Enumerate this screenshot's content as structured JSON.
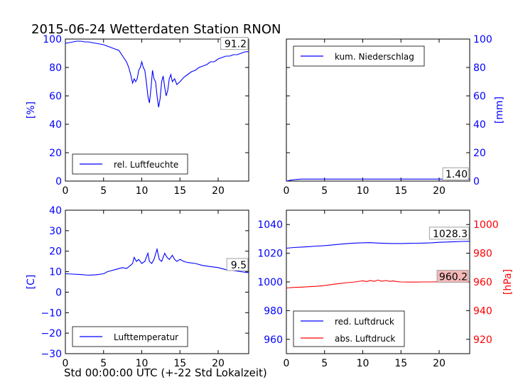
{
  "title": "2015-06-24 Wetterdaten Station RNON",
  "xcaption": "Std 00:00:00 UTC (+-22 Std Lokalzeit)",
  "colors": {
    "blue": "#0000ff",
    "red": "#ff0000",
    "grey": "#a0a0a0"
  },
  "chart_data": [
    {
      "type": "line",
      "panel": "top-left",
      "xlim": [
        0,
        24
      ],
      "xticks": [
        "0",
        "5",
        "10",
        "15",
        "20"
      ],
      "ylim": [
        0,
        100
      ],
      "yticks": [
        "0",
        "20",
        "40",
        "60",
        "80",
        "100"
      ],
      "ylabel": "[%]",
      "ylabel_color": "#0000ff",
      "axis_side": "left",
      "legend": "bottom-left",
      "annotation": "91.2",
      "series": [
        {
          "name": "rel. Luftfeuchte",
          "color": "#0000ff",
          "x": [
            0,
            0.5,
            1,
            1.5,
            2,
            2.5,
            3,
            3.5,
            4,
            4.5,
            5,
            5.5,
            6,
            6.5,
            7,
            7.5,
            8,
            8.3,
            8.6,
            8.8,
            9,
            9.2,
            9.4,
            9.6,
            9.8,
            10,
            10.2,
            10.4,
            10.6,
            10.8,
            11,
            11.2,
            11.4,
            11.6,
            11.8,
            12,
            12.2,
            12.4,
            12.6,
            12.8,
            13,
            13.2,
            13.4,
            13.6,
            13.8,
            14,
            14.3,
            14.6,
            15,
            15.5,
            16,
            16.5,
            17,
            17.5,
            18,
            18.5,
            19,
            19.5,
            20,
            20.5,
            21,
            21.5,
            22,
            22.5,
            23,
            23.5,
            24
          ],
          "y": [
            97,
            97.5,
            98,
            98.5,
            98.5,
            98,
            98,
            97.5,
            97,
            96.5,
            96,
            95,
            94,
            93,
            92,
            88,
            84,
            80,
            74,
            69,
            72,
            70,
            72,
            78,
            80,
            84,
            80,
            78,
            70,
            60,
            55,
            65,
            78,
            72,
            70,
            60,
            52,
            58,
            70,
            74,
            66,
            60,
            64,
            72,
            75,
            70,
            72,
            68,
            70,
            73,
            75,
            77,
            78,
            80,
            81,
            82,
            84,
            84,
            86,
            87,
            88,
            88,
            89,
            89,
            90,
            91,
            91.2
          ]
        }
      ]
    },
    {
      "type": "line",
      "panel": "top-right",
      "xlim": [
        0,
        24
      ],
      "xticks": [
        "0",
        "5",
        "10",
        "15",
        "20"
      ],
      "ylim": [
        0,
        100
      ],
      "yticks": [
        "0",
        "20",
        "40",
        "60",
        "80",
        "100"
      ],
      "ylabel": "[mm]",
      "ylabel_color": "#0000ff",
      "axis_side": "right",
      "legend": "top-left",
      "annotation": "1.40",
      "series": [
        {
          "name": "kum. Niederschlag",
          "color": "#0000ff",
          "x": [
            0,
            0.5,
            1,
            1.5,
            2,
            3,
            5,
            10,
            15,
            20,
            24
          ],
          "y": [
            0,
            0.6,
            1.0,
            1.2,
            1.4,
            1.4,
            1.4,
            1.4,
            1.4,
            1.4,
            1.4
          ]
        }
      ]
    },
    {
      "type": "line",
      "panel": "bottom-left",
      "xlim": [
        0,
        24
      ],
      "xticks": [
        "0",
        "5",
        "10",
        "15",
        "20"
      ],
      "ylim": [
        -30,
        40
      ],
      "yticks": [
        "−30",
        "−20",
        "−10",
        "0",
        "10",
        "20",
        "30",
        "40"
      ],
      "ylabel": "[C]",
      "ylabel_color": "#0000ff",
      "axis_side": "left",
      "legend": "bottom-left",
      "annotation": "9.5",
      "series": [
        {
          "name": "Lufttemperatur",
          "color": "#0000ff",
          "x": [
            0,
            1,
            2,
            3,
            4,
            5,
            5.5,
            6,
            6.5,
            7,
            7.5,
            8,
            8.5,
            8.8,
            9,
            9.3,
            9.6,
            10,
            10.4,
            10.8,
            11,
            11.3,
            11.6,
            12,
            12.3,
            12.6,
            13,
            13.3,
            13.6,
            14,
            14.3,
            14.6,
            15,
            15.5,
            16,
            17,
            18,
            19,
            20,
            21,
            22,
            23,
            24
          ],
          "y": [
            9,
            8.8,
            8.6,
            8.3,
            8.5,
            9,
            10,
            10.5,
            11,
            11.5,
            12,
            11.5,
            13,
            14,
            17,
            15,
            16,
            14,
            15,
            19,
            15,
            14,
            16,
            21,
            16,
            15,
            19,
            17,
            16,
            18,
            16,
            15,
            16,
            15,
            14.5,
            14,
            13,
            12.5,
            12,
            11,
            10.5,
            10,
            9.5
          ]
        }
      ]
    },
    {
      "type": "line",
      "panel": "bottom-right",
      "xlim": [
        0,
        24
      ],
      "xticks": [
        "0",
        "5",
        "10",
        "15",
        "20"
      ],
      "ylim": [
        950,
        1050
      ],
      "yticks": [
        "960",
        "980",
        "1000",
        "1020",
        "1040"
      ],
      "ylabel_color": "#0000ff",
      "axis_side": "left",
      "y2lim": [
        910,
        1010
      ],
      "y2ticks": [
        "920",
        "940",
        "960",
        "980",
        "1000"
      ],
      "y2label": "[hPa]",
      "y2label_color": "#ff0000",
      "legend": "bottom-left",
      "annotation": "1028.3",
      "annotation2": "960.2",
      "series": [
        {
          "name": "red. Luftdruck",
          "color": "#0000ff",
          "x": [
            0,
            1,
            2,
            3,
            4,
            5,
            6,
            7,
            8,
            9,
            10,
            11,
            12,
            13,
            14,
            15,
            16,
            17,
            18,
            19,
            20,
            21,
            22,
            23,
            24
          ],
          "y": [
            1023.5,
            1024,
            1024.3,
            1024.6,
            1025,
            1025.3,
            1025.8,
            1026.3,
            1026.8,
            1027.1,
            1027.3,
            1027.4,
            1027.1,
            1026.9,
            1026.8,
            1026.8,
            1026.9,
            1027,
            1027.1,
            1027.3,
            1027.6,
            1027.8,
            1028,
            1028.2,
            1028.3
          ]
        },
        {
          "name": "abs. Luftdruck",
          "color": "#ff0000",
          "x": [
            0,
            1,
            2,
            3,
            4,
            5,
            6,
            7,
            8,
            9,
            10,
            10.5,
            11,
            11.5,
            12,
            12.5,
            13,
            13.5,
            14,
            14.5,
            15,
            16,
            17,
            18,
            19,
            20,
            21,
            22,
            23,
            24
          ],
          "y": [
            955.8,
            956.2,
            956.4,
            956.7,
            957,
            957.5,
            958.2,
            958.9,
            959.5,
            960,
            960.8,
            960.3,
            961,
            960.4,
            961.3,
            960.5,
            961,
            960.4,
            960.7,
            960.2,
            960,
            959.9,
            959.9,
            960,
            960,
            960.1,
            960.1,
            960.2,
            960.2,
            960.2
          ]
        }
      ]
    }
  ]
}
